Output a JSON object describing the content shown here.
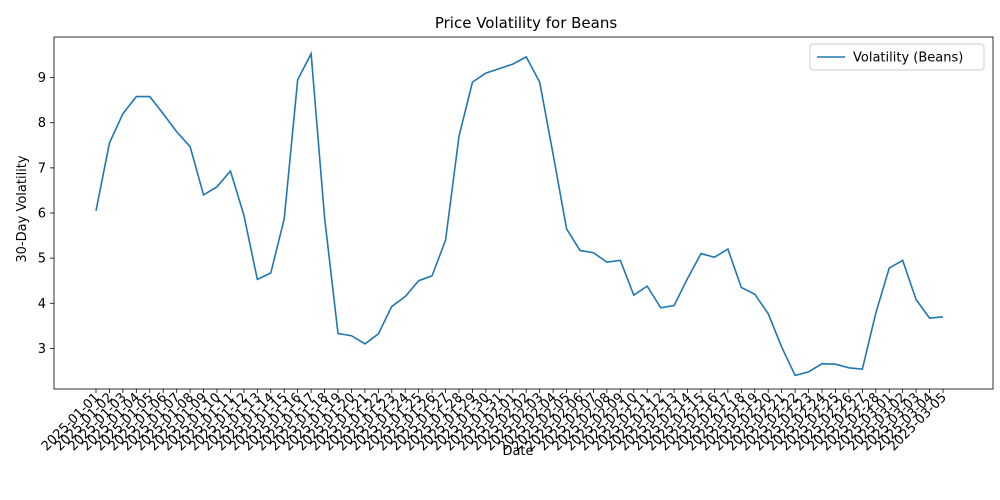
{
  "chart_data": {
    "type": "line",
    "title": "Price Volatility for Beans",
    "xlabel": "Date",
    "ylabel": "30-Day Volatility",
    "ylim": [
      2.1,
      9.9
    ],
    "yticks": [
      3,
      4,
      5,
      6,
      7,
      8,
      9
    ],
    "grid": false,
    "legend_position": "top-right",
    "series_color": "#1f77b4",
    "x": [
      "2025-01-01",
      "2025-01-02",
      "2025-01-03",
      "2025-01-04",
      "2025-01-05",
      "2025-01-06",
      "2025-01-07",
      "2025-01-08",
      "2025-01-09",
      "2025-01-10",
      "2025-01-11",
      "2025-01-12",
      "2025-01-13",
      "2025-01-14",
      "2025-01-15",
      "2025-01-16",
      "2025-01-17",
      "2025-01-18",
      "2025-01-19",
      "2025-01-20",
      "2025-01-21",
      "2025-01-22",
      "2025-01-23",
      "2025-01-24",
      "2025-01-25",
      "2025-01-26",
      "2025-01-27",
      "2025-01-28",
      "2025-01-29",
      "2025-01-30",
      "2025-01-31",
      "2025-02-01",
      "2025-02-02",
      "2025-02-03",
      "2025-02-04",
      "2025-02-05",
      "2025-02-06",
      "2025-02-07",
      "2025-02-08",
      "2025-02-09",
      "2025-02-10",
      "2025-02-11",
      "2025-02-12",
      "2025-02-13",
      "2025-02-14",
      "2025-02-15",
      "2025-02-16",
      "2025-02-17",
      "2025-02-18",
      "2025-02-19",
      "2025-02-20",
      "2025-02-21",
      "2025-02-22",
      "2025-02-23",
      "2025-02-24",
      "2025-02-25",
      "2025-02-26",
      "2025-02-27",
      "2025-02-28",
      "2025-03-01",
      "2025-03-02",
      "2025-03-03",
      "2025-03-04",
      "2025-03-05"
    ],
    "series": [
      {
        "name": "Volatility (Beans)",
        "values": [
          6.05,
          7.55,
          8.2,
          8.58,
          8.58,
          8.2,
          7.8,
          7.47,
          6.4,
          6.58,
          6.93,
          5.95,
          4.53,
          4.67,
          5.87,
          8.95,
          9.53,
          5.9,
          3.33,
          3.28,
          3.1,
          3.32,
          3.93,
          4.15,
          4.5,
          4.61,
          5.4,
          7.7,
          8.9,
          9.1,
          9.2,
          9.3,
          9.46,
          8.9,
          7.3,
          5.65,
          5.17,
          5.12,
          4.91,
          4.95,
          4.18,
          4.38,
          3.9,
          3.95,
          4.55,
          5.1,
          5.02,
          5.2,
          4.35,
          4.2,
          3.77,
          3.03,
          2.4,
          2.48,
          2.66,
          2.65,
          2.57,
          2.54,
          3.78,
          4.78,
          4.95,
          4.08,
          3.67,
          3.7
        ]
      }
    ]
  }
}
